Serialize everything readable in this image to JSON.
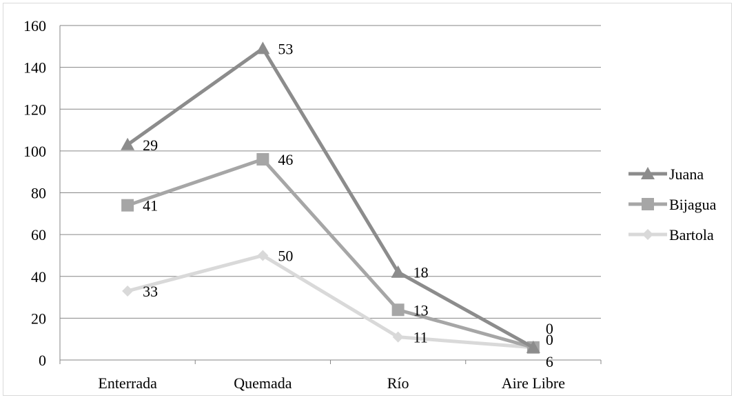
{
  "chart_data": {
    "type": "line",
    "title": "",
    "xlabel": "",
    "ylabel": "",
    "categories": [
      "Enterrada",
      "Quemada",
      "Río",
      "Aire Libre"
    ],
    "ylim": [
      0,
      160
    ],
    "yticks": [
      "0",
      "20",
      "40",
      "60",
      "80",
      "100",
      "120",
      "140",
      "160"
    ],
    "grid": true,
    "legend_position": "right",
    "stacked": true,
    "series": [
      {
        "name": "Bartola",
        "values": [
          33,
          50,
          11,
          6
        ],
        "labels": [
          "33",
          "50",
          "11",
          "6"
        ],
        "color": "#d9d9d9",
        "marker": "diamond"
      },
      {
        "name": "Bijagua",
        "values": [
          41,
          46,
          13,
          0
        ],
        "labels": [
          "41",
          "46",
          "13",
          "0"
        ],
        "color": "#a6a6a6",
        "marker": "square"
      },
      {
        "name": "Juana",
        "values": [
          29,
          53,
          18,
          0
        ],
        "labels": [
          "29",
          "53",
          "18",
          "0"
        ],
        "color": "#8c8c8c",
        "marker": "triangle"
      }
    ],
    "legend_order": [
      "Juana",
      "Bijagua",
      "Bartola"
    ]
  }
}
